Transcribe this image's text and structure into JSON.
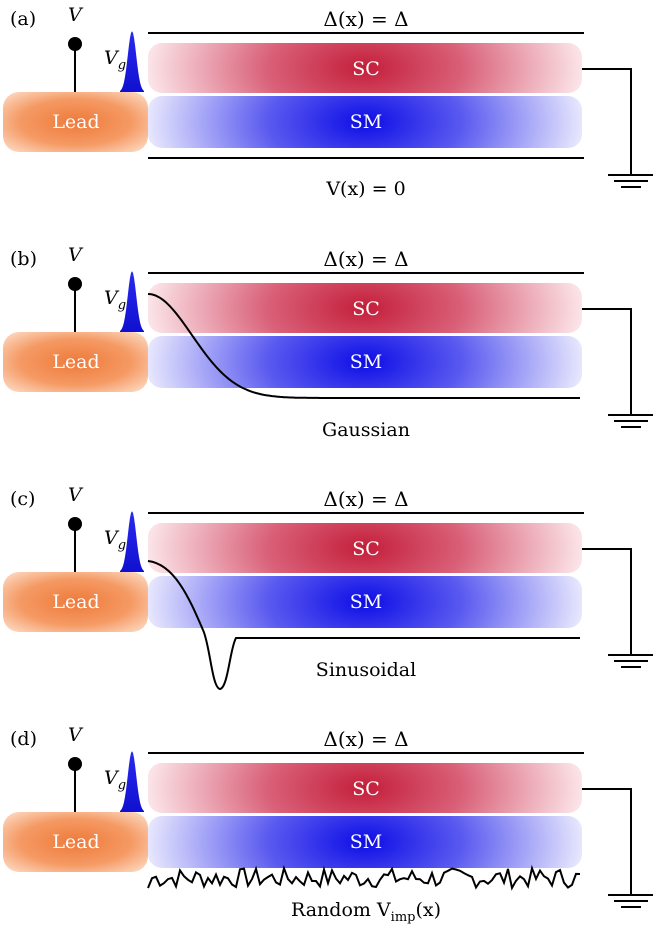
{
  "panels": [
    {
      "label": "(a)",
      "bias": "V",
      "gate": "V",
      "gate_sub": "g",
      "delta": "Δ(x) = Δ",
      "sc": "SC",
      "sm": "SM",
      "lead": "Lead",
      "caption": "V(x) = 0",
      "caption_position": "top",
      "potential": "flat"
    },
    {
      "label": "(b)",
      "bias": "V",
      "gate": "V",
      "gate_sub": "g",
      "delta": "Δ(x) = Δ",
      "sc": "SC",
      "sm": "SM",
      "lead": "Lead",
      "caption": "Gaussian",
      "potential": "gaussian"
    },
    {
      "label": "(c)",
      "bias": "V",
      "gate": "V",
      "gate_sub": "g",
      "delta": "Δ(x) = Δ",
      "sc": "SC",
      "sm": "SM",
      "lead": "Lead",
      "caption": "Sinusoidal",
      "potential": "sinusoidal"
    },
    {
      "label": "(d)",
      "bias": "V",
      "gate": "V",
      "gate_sub": "g",
      "delta": "Δ(x) = Δ",
      "sc": "SC",
      "sm": "SM",
      "lead": "Lead",
      "caption": "Random V",
      "caption_sub": "imp",
      "caption_tail": "(x)",
      "potential": "random"
    }
  ],
  "colors": {
    "lead": "#f08040",
    "sc": "#c8203c",
    "sm": "#1a1ae6",
    "line": "#000000"
  }
}
